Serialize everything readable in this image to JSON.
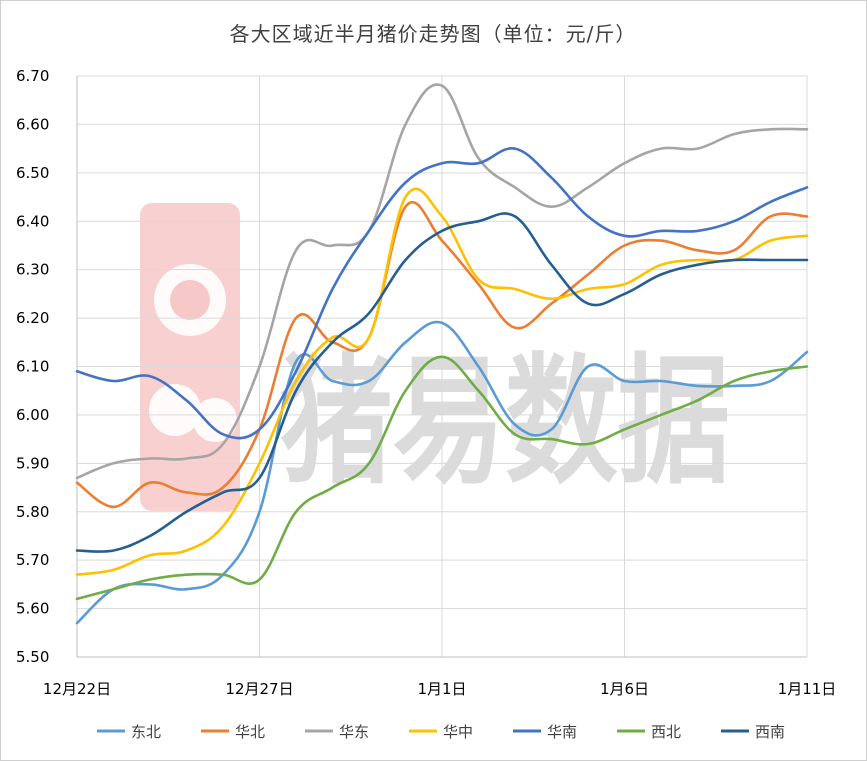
{
  "chart_data": {
    "type": "line",
    "title": "各大区域近半月猪价走势图（单位：元/斤）",
    "watermark": "猪易数据",
    "xlabel": "",
    "ylabel": "",
    "ylim": [
      5.5,
      6.7
    ],
    "y_ticks": [
      "5.50",
      "5.60",
      "5.70",
      "5.80",
      "5.90",
      "6.00",
      "6.10",
      "6.20",
      "6.30",
      "6.40",
      "6.50",
      "6.60",
      "6.70"
    ],
    "x": [
      0,
      1,
      2,
      3,
      4,
      5,
      6,
      7,
      8,
      9,
      10,
      11,
      12,
      13,
      14,
      15,
      16,
      17,
      18,
      19,
      20
    ],
    "x_tick_labels": [
      {
        "x": 0,
        "label": "12月22日"
      },
      {
        "x": 5,
        "label": "12月27日"
      },
      {
        "x": 10,
        "label": "1月1日"
      },
      {
        "x": 15,
        "label": "1月6日"
      },
      {
        "x": 20,
        "label": "1月11日"
      }
    ],
    "grid": true,
    "legend_position": "bottom",
    "series": [
      {
        "name": "东北",
        "color": "#5B9BD5",
        "values": [
          5.57,
          5.64,
          5.65,
          5.64,
          5.67,
          5.8,
          6.11,
          6.07,
          6.07,
          6.15,
          6.19,
          6.1,
          5.98,
          5.97,
          6.1,
          6.07,
          6.07,
          6.06,
          6.06,
          6.07,
          6.13
        ]
      },
      {
        "name": "华北",
        "color": "#ED7D31",
        "values": [
          5.86,
          5.81,
          5.86,
          5.84,
          5.85,
          5.97,
          6.2,
          6.15,
          6.16,
          6.43,
          6.36,
          6.27,
          6.18,
          6.23,
          6.29,
          6.35,
          6.36,
          6.34,
          6.34,
          6.41,
          6.41
        ]
      },
      {
        "name": "华东",
        "color": "#A5A5A5",
        "values": [
          5.87,
          5.9,
          5.91,
          5.91,
          5.94,
          6.1,
          6.34,
          6.35,
          6.38,
          6.6,
          6.68,
          6.53,
          6.47,
          6.43,
          6.47,
          6.52,
          6.55,
          6.55,
          6.58,
          6.59,
          6.59
        ]
      },
      {
        "name": "华中",
        "color": "#FFC000",
        "values": [
          5.67,
          5.68,
          5.71,
          5.72,
          5.77,
          5.9,
          6.07,
          6.16,
          6.16,
          6.45,
          6.41,
          6.28,
          6.26,
          6.24,
          6.26,
          6.27,
          6.31,
          6.32,
          6.32,
          6.36,
          6.37
        ]
      },
      {
        "name": "华南",
        "color": "#4472C4",
        "values": [
          6.09,
          6.07,
          6.08,
          6.03,
          5.96,
          5.97,
          6.09,
          6.26,
          6.38,
          6.48,
          6.52,
          6.52,
          6.55,
          6.49,
          6.41,
          6.37,
          6.38,
          6.38,
          6.4,
          6.44,
          6.47
        ]
      },
      {
        "name": "西北",
        "color": "#70AD47",
        "values": [
          5.62,
          5.64,
          5.66,
          5.67,
          5.67,
          5.66,
          5.8,
          5.85,
          5.9,
          6.05,
          6.12,
          6.05,
          5.96,
          5.95,
          5.94,
          5.97,
          6.0,
          6.03,
          6.07,
          6.09,
          6.1
        ]
      },
      {
        "name": "西南",
        "color": "#255E91",
        "values": [
          5.72,
          5.72,
          5.75,
          5.8,
          5.84,
          5.87,
          6.05,
          6.15,
          6.21,
          6.32,
          6.38,
          6.4,
          6.41,
          6.31,
          6.23,
          6.25,
          6.29,
          6.31,
          6.32,
          6.32,
          6.32
        ]
      }
    ]
  }
}
